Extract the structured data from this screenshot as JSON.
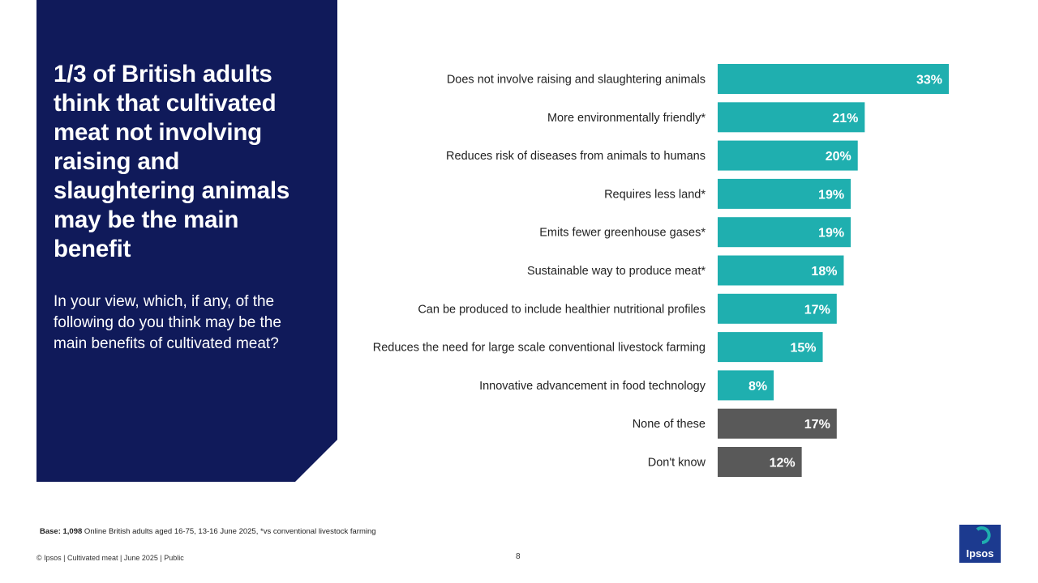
{
  "panel": {
    "title": "1/3 of British adults think that cultivated meat not involving raising and slaughtering animals may be the main benefit",
    "question": "In your view, which, if any, of the following do you think may be the main benefits of cultivated meat?"
  },
  "chart_data": {
    "type": "bar",
    "orientation": "horizontal",
    "title": "",
    "xlabel": "",
    "ylabel": "",
    "xlim": [
      0,
      33
    ],
    "unit": "%",
    "categories": [
      "Does not involve raising and slaughtering animals",
      "More environmentally friendly*",
      "Reduces risk of diseases from animals to humans",
      "Requires less land*",
      "Emits fewer greenhouse gases*",
      "Sustainable way to produce meat*",
      "Can be produced to include healthier nutritional profiles",
      "Reduces the need for large scale conventional livestock farming",
      "Innovative advancement in food technology",
      "None of these",
      "Don't know"
    ],
    "values": [
      33,
      21,
      20,
      19,
      19,
      18,
      17,
      15,
      8,
      17,
      12
    ],
    "value_labels": [
      "33%",
      "21%",
      "20%",
      "19%",
      "19%",
      "18%",
      "17%",
      "15%",
      "8%",
      "17%",
      "12%"
    ],
    "bar_colors": [
      "#1fafaf",
      "#1fafaf",
      "#1fafaf",
      "#1fafaf",
      "#1fafaf",
      "#1fafaf",
      "#1fafaf",
      "#1fafaf",
      "#1fafaf",
      "#595959",
      "#595959"
    ]
  },
  "base": {
    "label": "Base: 1,098",
    "text": " Online British adults aged 16-75, 13-16 June 2025, *vs conventional livestock farming"
  },
  "footer": {
    "left": "© Ipsos | Cultivated meat | June 2025 | Public",
    "page": "8"
  },
  "logo": {
    "text": "Ipsos",
    "color": "#1c3a8f",
    "accent": "#1fafaf"
  }
}
